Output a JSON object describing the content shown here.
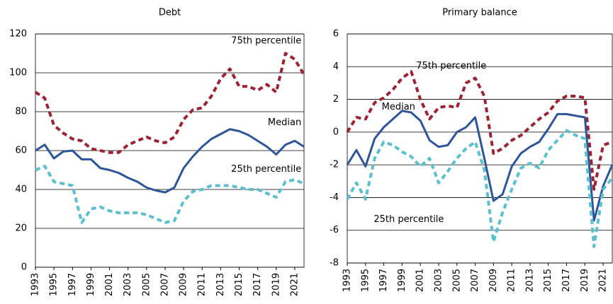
{
  "chart_data": [
    {
      "type": "line",
      "title": "Debt",
      "x": [
        1993,
        1994,
        1995,
        1996,
        1997,
        1998,
        1999,
        2000,
        2001,
        2002,
        2003,
        2004,
        2005,
        2006,
        2007,
        2008,
        2009,
        2010,
        2011,
        2012,
        2013,
        2014,
        2015,
        2016,
        2017,
        2018,
        2019,
        2020,
        2021,
        2022
      ],
      "xlim": [
        1993,
        2022
      ],
      "xticks": [
        1993,
        1995,
        1997,
        1999,
        2001,
        2003,
        2005,
        2007,
        2009,
        2011,
        2013,
        2015,
        2017,
        2019,
        2021
      ],
      "ylim": [
        0,
        120
      ],
      "yticks": [
        0,
        20,
        40,
        60,
        80,
        100,
        120
      ],
      "grid": true,
      "series": [
        {
          "name": "75th percentile",
          "color": "#9b2335",
          "style": "dashed",
          "values": [
            90,
            87,
            73,
            69,
            66,
            65,
            61,
            60,
            59,
            59,
            63,
            65,
            67,
            65,
            64,
            67,
            76,
            81,
            82,
            88,
            97,
            102,
            93,
            93,
            91,
            94,
            90,
            110,
            107,
            99
          ]
        },
        {
          "name": "Median",
          "color": "#2e5597",
          "style": "solid",
          "values": [
            60,
            63,
            56,
            59.5,
            60,
            55.5,
            55.5,
            51,
            50,
            48.5,
            46,
            44,
            41,
            39.5,
            38.5,
            41,
            51,
            57,
            62,
            66,
            68.5,
            71,
            70,
            68,
            65,
            62,
            58,
            63,
            65,
            62
          ]
        },
        {
          "name": "25th percentile",
          "color": "#5bc0cc",
          "style": "dashed",
          "values": [
            50,
            52,
            44,
            43,
            42,
            23,
            30,
            31,
            29,
            28,
            28,
            28,
            27,
            25,
            23,
            24,
            34,
            39,
            40,
            42,
            42,
            42,
            41,
            40,
            40,
            38,
            36,
            44,
            45,
            43
          ]
        }
      ]
    },
    {
      "type": "line",
      "title": "Primary balance",
      "x": [
        1993,
        1994,
        1995,
        1996,
        1997,
        1998,
        1999,
        2000,
        2001,
        2002,
        2003,
        2004,
        2005,
        2006,
        2007,
        2008,
        2009,
        2010,
        2011,
        2012,
        2013,
        2014,
        2015,
        2016,
        2017,
        2018,
        2019,
        2020,
        2021,
        2022
      ],
      "xlim": [
        1993,
        2022
      ],
      "xticks": [
        1993,
        1995,
        1997,
        1999,
        2001,
        2003,
        2005,
        2007,
        2009,
        2011,
        2013,
        2015,
        2017,
        2019,
        2021
      ],
      "ylim": [
        -8,
        6
      ],
      "yticks": [
        -8,
        -6,
        -4,
        -2,
        0,
        2,
        4,
        6
      ],
      "grid": true,
      "series": [
        {
          "name": "75th percentile",
          "color": "#9b2335",
          "style": "dashed",
          "values": [
            0,
            0.9,
            0.8,
            1.8,
            2.1,
            2.6,
            3.3,
            3.7,
            2.0,
            0.8,
            1.5,
            1.6,
            1.5,
            3.0,
            3.3,
            2.2,
            -1.3,
            -1.0,
            -0.5,
            -0.2,
            0.3,
            0.8,
            1.2,
            1.9,
            2.2,
            2.2,
            2.1,
            -3.5,
            -0.8,
            -0.6
          ]
        },
        {
          "name": "Median",
          "color": "#2e5597",
          "style": "solid",
          "values": [
            -2,
            -1.1,
            -2.1,
            -0.4,
            0.3,
            0.8,
            1.3,
            1.2,
            0.7,
            -0.5,
            -0.9,
            -0.8,
            0,
            0.3,
            0.9,
            -1.6,
            -4.2,
            -3.8,
            -2.1,
            -1.3,
            -0.9,
            -0.6,
            0.2,
            1.1,
            1.1,
            1.0,
            0.9,
            -5.4,
            -3.3,
            -2
          ]
        },
        {
          "name": "25th percentile",
          "color": "#5bc0cc",
          "style": "dashed",
          "values": [
            -4.1,
            -3.1,
            -4.1,
            -1.6,
            -0.6,
            -0.8,
            -1.2,
            -1.5,
            -2.1,
            -1.6,
            -3.1,
            -2.4,
            -1.6,
            -1.0,
            -0.6,
            -2.3,
            -6.7,
            -4.9,
            -3.5,
            -2.2,
            -1.9,
            -2.2,
            -1.1,
            -0.5,
            0.1,
            -0.2,
            -0.4,
            -7.0,
            -3.5,
            -2.8
          ]
        }
      ]
    }
  ]
}
